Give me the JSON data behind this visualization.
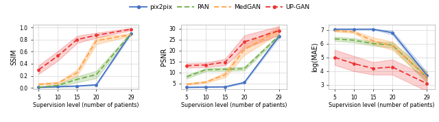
{
  "x": [
    5,
    10,
    15,
    20,
    29
  ],
  "ssim": {
    "pix2pix_mean": [
      0.01,
      0.02,
      0.03,
      0.05,
      0.9
    ],
    "pix2pix_std": [
      0.005,
      0.005,
      0.005,
      0.01,
      0.02
    ],
    "pan_mean": [
      0.01,
      0.04,
      0.14,
      0.22,
      0.9
    ],
    "pan_std": [
      0.005,
      0.02,
      0.05,
      0.06,
      0.02
    ],
    "medgan_mean": [
      0.06,
      0.08,
      0.25,
      0.78,
      0.88
    ],
    "medgan_std": [
      0.015,
      0.015,
      0.05,
      0.06,
      0.02
    ],
    "upgan_mean": [
      0.3,
      0.53,
      0.8,
      0.87,
      0.97
    ],
    "upgan_std": [
      0.07,
      0.08,
      0.06,
      0.04,
      0.02
    ],
    "ylim": [
      -0.02,
      1.05
    ],
    "yticks": [
      0.0,
      0.2,
      0.4,
      0.6,
      0.8,
      1.0
    ],
    "ylabel": "SSIM"
  },
  "psnr": {
    "pix2pix_mean": [
      3.3,
      3.4,
      3.5,
      5.5,
      26.5
    ],
    "pix2pix_std": [
      0.15,
      0.15,
      0.15,
      0.4,
      0.8
    ],
    "pan_mean": [
      8.1,
      11.3,
      11.5,
      11.8,
      26.8
    ],
    "pan_std": [
      0.8,
      0.7,
      0.8,
      0.8,
      0.7
    ],
    "medgan_mean": [
      4.7,
      5.7,
      9.0,
      20.5,
      29.3
    ],
    "medgan_std": [
      0.4,
      0.4,
      1.2,
      2.5,
      1.5
    ],
    "upgan_mean": [
      13.2,
      13.5,
      14.8,
      24.0,
      29.2
    ],
    "upgan_std": [
      1.0,
      1.0,
      1.5,
      3.0,
      2.0
    ],
    "ylim": [
      2.5,
      32
    ],
    "yticks": [
      5,
      10,
      15,
      20,
      25,
      30
    ],
    "ylabel": "PSNR"
  },
  "logmae": {
    "pix2pix_mean": [
      7.05,
      7.05,
      7.05,
      6.8,
      3.7
    ],
    "pix2pix_std": [
      0.03,
      0.03,
      0.03,
      0.15,
      0.25
    ],
    "pan_mean": [
      6.35,
      6.25,
      6.0,
      5.9,
      3.55
    ],
    "pan_std": [
      0.15,
      0.15,
      0.15,
      0.2,
      0.4
    ],
    "medgan_mean": [
      6.95,
      6.85,
      6.2,
      5.85,
      3.6
    ],
    "medgan_std": [
      0.08,
      0.08,
      0.25,
      0.3,
      0.3
    ],
    "upgan_mean": [
      5.0,
      4.55,
      4.2,
      4.3,
      3.1
    ],
    "upgan_std": [
      0.55,
      0.55,
      0.45,
      0.55,
      0.55
    ],
    "ylim": [
      2.7,
      7.4
    ],
    "yticks": [
      3,
      4,
      5,
      6,
      7
    ],
    "ylabel": "log(MAE)"
  },
  "colors": {
    "pix2pix": "#4472C4",
    "pan": "#70AD47",
    "medgan": "#FFA040",
    "upgan": "#EE3333"
  },
  "xlabel": "Supervision level (number of patients)",
  "legend_labels": [
    "pix2pix",
    "PAN",
    "MedGAN",
    "UP-GAN"
  ]
}
